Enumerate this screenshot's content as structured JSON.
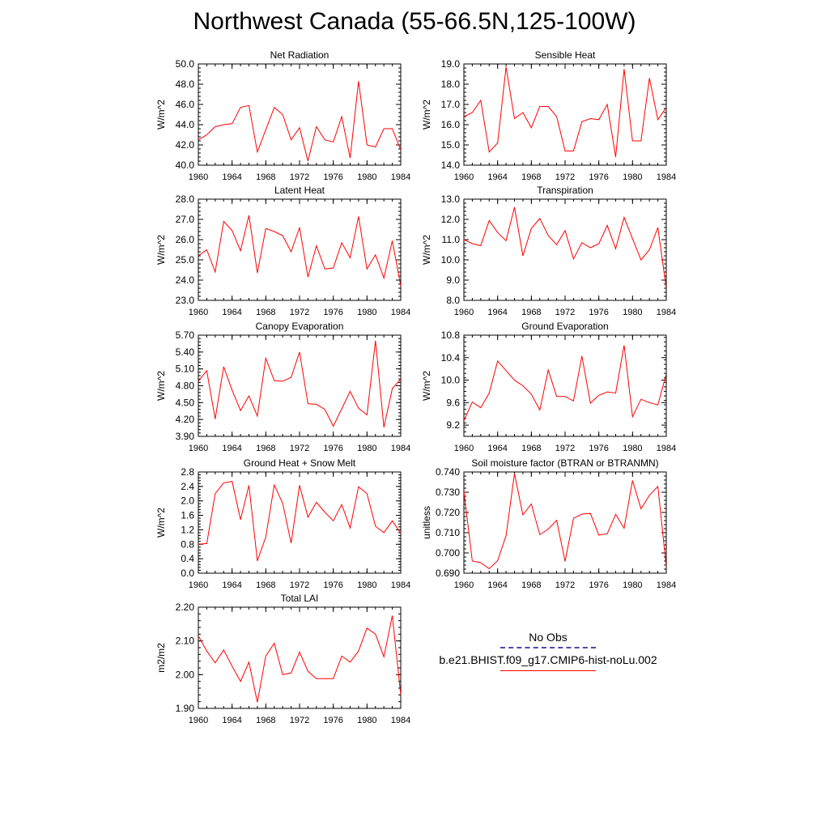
{
  "title": "Northwest Canada (55-66.5N,125-100W)",
  "series_color": "#ff0000",
  "legend": {
    "obs_label": "No Obs",
    "obs_color": "#4a4aa8",
    "model_label": "b.e21.BHIST.f09_g17.CMIP6-hist-noLu.002",
    "model_color": "#ff0000"
  },
  "chart_data": [
    {
      "type": "line",
      "title": "Net Radiation",
      "ylabel": "W/m^2",
      "xlim": [
        1960,
        1984
      ],
      "ylim": [
        40.0,
        50.0
      ],
      "xticks": [
        "1960",
        "1964",
        "1968",
        "1972",
        "1976",
        "1980",
        "1984"
      ],
      "yticks": [
        "40.0",
        "42.0",
        "44.0",
        "46.0",
        "48.0",
        "50.0"
      ],
      "x": [
        1960,
        1961,
        1962,
        1963,
        1964,
        1965,
        1966,
        1967,
        1968,
        1969,
        1970,
        1971,
        1972,
        1973,
        1974,
        1975,
        1976,
        1977,
        1978,
        1979,
        1980,
        1981,
        1982,
        1983,
        1984
      ],
      "values": [
        42.5,
        43.0,
        43.8,
        44.0,
        44.1,
        45.7,
        45.9,
        41.3,
        43.5,
        45.7,
        45.0,
        42.5,
        43.7,
        40.4,
        43.8,
        42.5,
        42.3,
        44.8,
        40.7,
        48.3,
        42.0,
        41.8,
        43.6,
        43.6,
        41.5
      ]
    },
    {
      "type": "line",
      "title": "Sensible Heat",
      "ylabel": "W/m^2",
      "xlim": [
        1960,
        1984
      ],
      "ylim": [
        14.0,
        19.0
      ],
      "xticks": [
        "1960",
        "1964",
        "1968",
        "1972",
        "1976",
        "1980",
        "1984"
      ],
      "yticks": [
        "14.0",
        "15.0",
        "16.0",
        "17.0",
        "18.0",
        "19.0"
      ],
      "x": [
        1960,
        1961,
        1962,
        1963,
        1964,
        1965,
        1966,
        1967,
        1968,
        1969,
        1970,
        1971,
        1972,
        1973,
        1974,
        1975,
        1976,
        1977,
        1978,
        1979,
        1980,
        1981,
        1982,
        1983,
        1984
      ],
      "values": [
        16.4,
        16.6,
        17.2,
        14.65,
        15.1,
        18.85,
        16.3,
        16.6,
        15.85,
        16.9,
        16.9,
        16.4,
        14.7,
        14.7,
        16.15,
        16.3,
        16.25,
        17.0,
        14.4,
        18.75,
        15.2,
        15.2,
        18.3,
        16.25,
        16.85
      ]
    },
    {
      "type": "line",
      "title": "Latent Heat",
      "ylabel": "W/m^2",
      "xlim": [
        1960,
        1984
      ],
      "ylim": [
        23.0,
        28.0
      ],
      "xticks": [
        "1960",
        "1964",
        "1968",
        "1972",
        "1976",
        "1980",
        "1984"
      ],
      "yticks": [
        "23.0",
        "24.0",
        "25.0",
        "26.0",
        "27.0",
        "28.0"
      ],
      "x": [
        1960,
        1961,
        1962,
        1963,
        1964,
        1965,
        1966,
        1967,
        1968,
        1969,
        1970,
        1971,
        1972,
        1973,
        1974,
        1975,
        1976,
        1977,
        1978,
        1979,
        1980,
        1981,
        1982,
        1983,
        1984
      ],
      "values": [
        25.2,
        25.5,
        24.4,
        26.9,
        26.45,
        25.45,
        27.2,
        24.35,
        26.55,
        26.4,
        26.2,
        25.4,
        26.6,
        24.15,
        25.7,
        24.55,
        24.6,
        25.85,
        25.1,
        27.15,
        24.55,
        25.25,
        24.1,
        25.95,
        23.7
      ]
    },
    {
      "type": "line",
      "title": "Transpiration",
      "ylabel": "W/m^2",
      "xlim": [
        1960,
        1984
      ],
      "ylim": [
        8.0,
        13.0
      ],
      "xticks": [
        "1960",
        "1964",
        "1968",
        "1972",
        "1976",
        "1980",
        "1984"
      ],
      "yticks": [
        "8.0",
        "9.0",
        "10.0",
        "11.0",
        "12.0",
        "13.0"
      ],
      "x": [
        1960,
        1961,
        1962,
        1963,
        1964,
        1965,
        1966,
        1967,
        1968,
        1969,
        1970,
        1971,
        1972,
        1973,
        1974,
        1975,
        1976,
        1977,
        1978,
        1979,
        1980,
        1981,
        1982,
        1983,
        1984
      ],
      "values": [
        11.0,
        10.8,
        10.7,
        11.95,
        11.35,
        10.95,
        12.6,
        10.2,
        11.55,
        12.05,
        11.2,
        10.75,
        11.45,
        10.05,
        10.85,
        10.6,
        10.8,
        11.7,
        10.55,
        12.1,
        11.05,
        10.0,
        10.5,
        11.6,
        8.6
      ]
    },
    {
      "type": "line",
      "title": "Canopy Evaporation",
      "ylabel": "W/m^2",
      "xlim": [
        1960,
        1984
      ],
      "ylim": [
        3.9,
        5.7
      ],
      "xticks": [
        "1960",
        "1964",
        "1968",
        "1972",
        "1976",
        "1980",
        "1984"
      ],
      "yticks": [
        "3.90",
        "4.20",
        "4.50",
        "4.80",
        "5.10",
        "5.40",
        "5.70"
      ],
      "x": [
        1960,
        1961,
        1962,
        1963,
        1964,
        1965,
        1966,
        1967,
        1968,
        1969,
        1970,
        1971,
        1972,
        1973,
        1974,
        1975,
        1976,
        1977,
        1978,
        1979,
        1980,
        1981,
        1982,
        1983,
        1984
      ],
      "values": [
        4.88,
        5.07,
        4.21,
        5.14,
        4.72,
        4.36,
        4.62,
        4.26,
        5.29,
        4.89,
        4.88,
        4.95,
        5.4,
        4.48,
        4.47,
        4.38,
        4.08,
        4.39,
        4.7,
        4.4,
        4.28,
        5.6,
        4.06,
        4.75,
        4.92
      ]
    },
    {
      "type": "line",
      "title": "Ground Evaporation",
      "ylabel": "W/m^2",
      "xlim": [
        1960,
        1984
      ],
      "ylim": [
        9.0,
        10.8
      ],
      "xticks": [
        "1960",
        "1964",
        "1968",
        "1972",
        "1976",
        "1980",
        "1984"
      ],
      "yticks": [
        "9.2",
        "9.6",
        "10.0",
        "10.4",
        "10.8"
      ],
      "x": [
        1960,
        1961,
        1962,
        1963,
        1964,
        1965,
        1966,
        1967,
        1968,
        1969,
        1970,
        1971,
        1972,
        1973,
        1974,
        1975,
        1976,
        1977,
        1978,
        1979,
        1980,
        1981,
        1982,
        1983,
        1984
      ],
      "values": [
        9.28,
        9.61,
        9.51,
        9.77,
        10.34,
        10.17,
        10.0,
        9.9,
        9.75,
        9.47,
        10.18,
        9.71,
        9.71,
        9.63,
        10.43,
        9.59,
        9.73,
        9.79,
        9.77,
        10.62,
        9.35,
        9.66,
        9.6,
        9.56,
        10.11
      ]
    },
    {
      "type": "line",
      "title": "Ground Heat + Snow Melt",
      "ylabel": "W/m^2",
      "xlim": [
        1960,
        1984
      ],
      "ylim": [
        0.0,
        2.8
      ],
      "xticks": [
        "1960",
        "1964",
        "1968",
        "1972",
        "1976",
        "1980",
        "1984"
      ],
      "yticks": [
        "0.0",
        "0.4",
        "0.8",
        "1.2",
        "1.6",
        "2.0",
        "2.4",
        "2.8"
      ],
      "x": [
        1960,
        1961,
        1962,
        1963,
        1964,
        1965,
        1966,
        1967,
        1968,
        1969,
        1970,
        1971,
        1972,
        1973,
        1974,
        1975,
        1976,
        1977,
        1978,
        1979,
        1980,
        1981,
        1982,
        1983,
        1984
      ],
      "values": [
        0.8,
        0.82,
        2.2,
        2.5,
        2.54,
        1.48,
        2.43,
        0.34,
        1.0,
        2.44,
        1.93,
        0.83,
        2.43,
        1.55,
        1.96,
        1.69,
        1.45,
        1.9,
        1.25,
        2.39,
        2.2,
        1.3,
        1.12,
        1.45,
        1.1
      ]
    },
    {
      "type": "line",
      "title": "Soil moisture factor (BTRAN or BTRANMN)",
      "ylabel": "unitless",
      "xlim": [
        1960,
        1984
      ],
      "ylim": [
        0.69,
        0.74
      ],
      "xticks": [
        "1960",
        "1964",
        "1968",
        "1972",
        "1976",
        "1980",
        "1984"
      ],
      "yticks": [
        "0.690",
        "0.700",
        "0.710",
        "0.720",
        "0.730",
        "0.740"
      ],
      "x": [
        1960,
        1961,
        1962,
        1963,
        1964,
        1965,
        1966,
        1967,
        1968,
        1969,
        1970,
        1971,
        1972,
        1973,
        1974,
        1975,
        1976,
        1977,
        1978,
        1979,
        1980,
        1981,
        1982,
        1983,
        1984
      ],
      "values": [
        0.7305,
        0.696,
        0.6952,
        0.6922,
        0.6962,
        0.7085,
        0.7392,
        0.7188,
        0.7242,
        0.709,
        0.7118,
        0.7161,
        0.6958,
        0.7171,
        0.7192,
        0.7195,
        0.7088,
        0.7095,
        0.7191,
        0.7122,
        0.7358,
        0.7218,
        0.7285,
        0.7328,
        0.6932
      ]
    },
    {
      "type": "line",
      "title": "Total LAI",
      "ylabel": "m2/m2",
      "xlim": [
        1960,
        1984
      ],
      "ylim": [
        1.9,
        2.2
      ],
      "xticks": [
        "1960",
        "1964",
        "1968",
        "1972",
        "1976",
        "1980",
        "1984"
      ],
      "yticks": [
        "1.90",
        "2.00",
        "2.10",
        "2.20"
      ],
      "x": [
        1960,
        1961,
        1962,
        1963,
        1964,
        1965,
        1966,
        1967,
        1968,
        1969,
        1970,
        1971,
        1972,
        1973,
        1974,
        1975,
        1976,
        1977,
        1978,
        1979,
        1980,
        1981,
        1982,
        1983,
        1984
      ],
      "values": [
        2.115,
        2.07,
        2.035,
        2.073,
        2.025,
        1.98,
        2.037,
        1.918,
        2.055,
        2.093,
        2.0,
        2.005,
        2.067,
        2.01,
        1.988,
        1.988,
        1.988,
        2.055,
        2.037,
        2.07,
        2.138,
        2.12,
        2.053,
        2.175,
        1.94
      ]
    }
  ]
}
